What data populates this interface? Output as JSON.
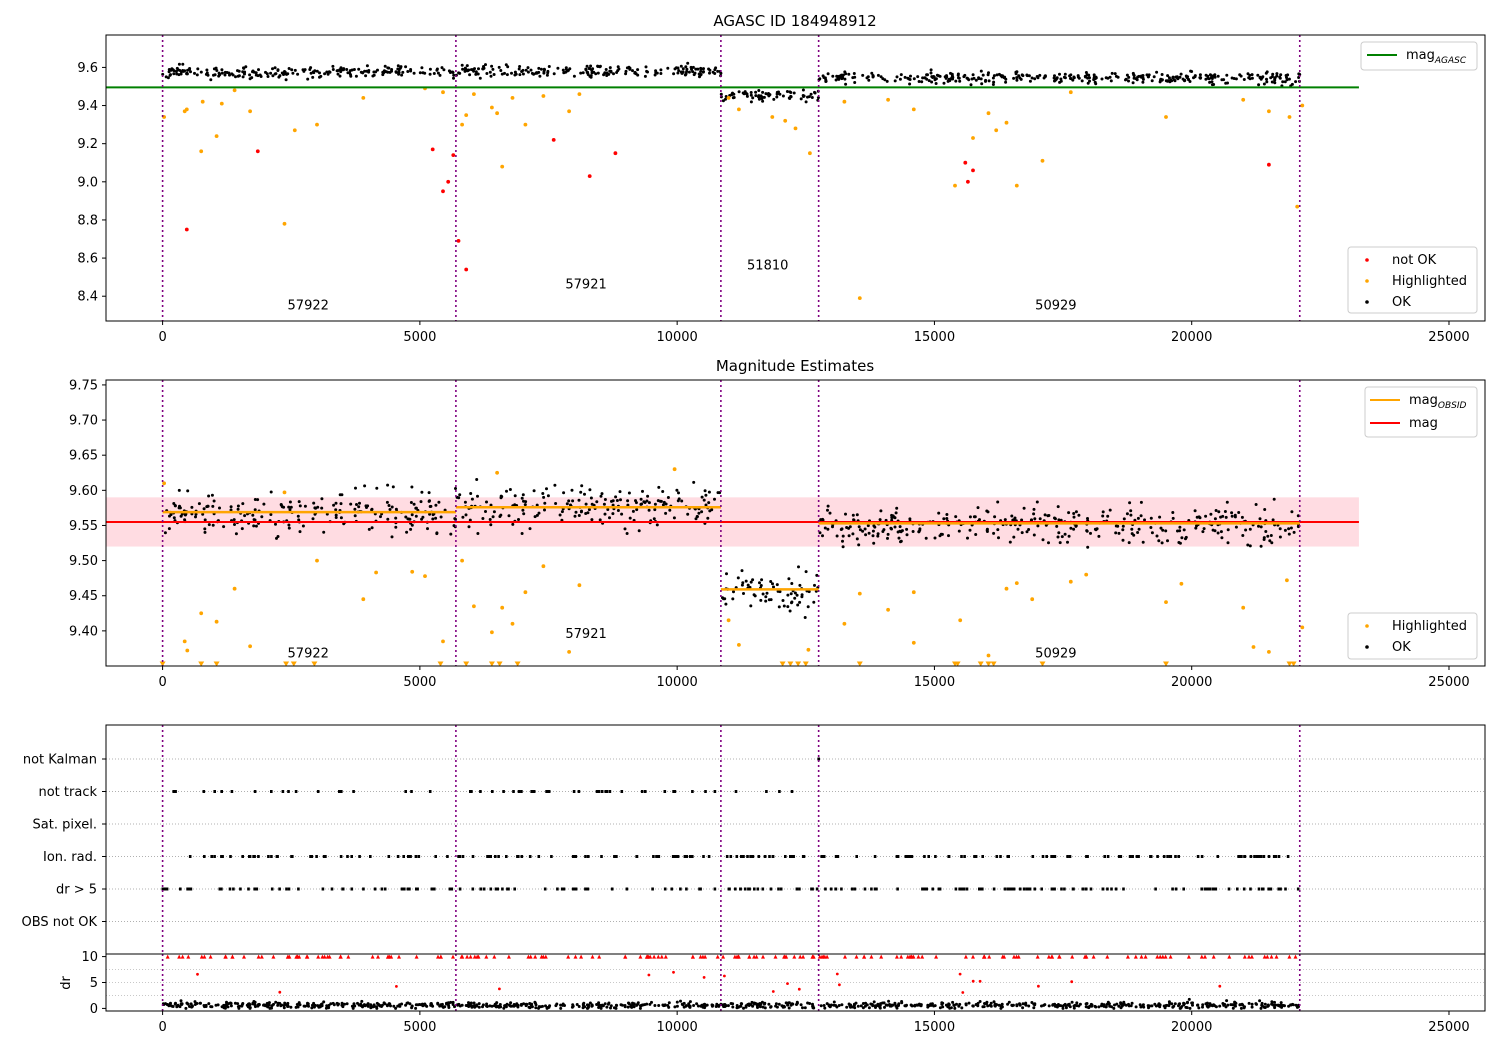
{
  "chart_data": [
    {
      "type": "scatter",
      "title": "AGASC ID 184948912",
      "xlim": [
        -1100,
        25700
      ],
      "ylim": [
        8.27,
        9.77
      ],
      "x_ticks": [
        0,
        5000,
        10000,
        15000,
        20000,
        25000
      ],
      "x_tick_labels": [
        "0",
        "5000",
        "10000",
        "15000",
        "20000",
        "25000"
      ],
      "y_ticks": [
        8.4,
        8.6,
        8.8,
        9.0,
        9.2,
        9.4,
        9.6
      ],
      "y_tick_labels": [
        "8.4",
        "8.6",
        "8.8",
        "9.0",
        "9.2",
        "9.4",
        "9.6"
      ],
      "obsid_boundaries": [
        0,
        5700,
        10850,
        12750,
        22100
      ],
      "obsid_labels": [
        {
          "text": "57922",
          "x": 2830,
          "y": 8.33
        },
        {
          "text": "57921",
          "x": 8230,
          "y": 8.44
        },
        {
          "text": "51810",
          "x": 11760,
          "y": 8.54
        },
        {
          "text": "50929",
          "x": 17360,
          "y": 8.33
        }
      ],
      "series": [
        {
          "name": "mag_AGASC",
          "type": "hline",
          "y": 9.495,
          "x_range": [
            -1100,
            23250
          ],
          "color": "#008000"
        },
        {
          "name": "OK",
          "color": "#000000",
          "segments": [
            {
              "x": [
                0,
                5700
              ],
              "y": 9.575,
              "spread": 0.035
            },
            {
              "x": [
                5700,
                10850
              ],
              "y": 9.58,
              "spread": 0.035
            },
            {
              "x": [
                10850,
                12750
              ],
              "y": 9.455,
              "spread": 0.035
            },
            {
              "x": [
                12750,
                22100
              ],
              "y": 9.545,
              "spread": 0.035
            }
          ]
        },
        {
          "name": "Highlighted",
          "color": "#ffa500",
          "points": [
            [
              30,
              9.34
            ],
            [
              430,
              9.37
            ],
            [
              470,
              9.38
            ],
            [
              750,
              9.16
            ],
            [
              780,
              9.42
            ],
            [
              1050,
              9.24
            ],
            [
              1150,
              9.41
            ],
            [
              1400,
              9.48
            ],
            [
              1700,
              9.37
            ],
            [
              2370,
              8.78
            ],
            [
              2570,
              9.27
            ],
            [
              3000,
              9.3
            ],
            [
              3900,
              9.44
            ],
            [
              5100,
              9.49
            ],
            [
              5450,
              9.47
            ],
            [
              5820,
              9.3
            ],
            [
              5900,
              9.35
            ],
            [
              6050,
              9.46
            ],
            [
              6400,
              9.39
            ],
            [
              6500,
              9.36
            ],
            [
              6600,
              9.08
            ],
            [
              6800,
              9.44
            ],
            [
              7050,
              9.3
            ],
            [
              7400,
              9.45
            ],
            [
              7900,
              9.37
            ],
            [
              8100,
              9.46
            ],
            [
              11000,
              9.44
            ],
            [
              11200,
              9.38
            ],
            [
              11850,
              9.34
            ],
            [
              12100,
              9.32
            ],
            [
              12300,
              9.28
            ],
            [
              12580,
              9.15
            ],
            [
              13250,
              9.42
            ],
            [
              13550,
              8.39
            ],
            [
              14100,
              9.43
            ],
            [
              14600,
              9.38
            ],
            [
              15400,
              8.98
            ],
            [
              15750,
              9.23
            ],
            [
              16050,
              9.36
            ],
            [
              16200,
              9.27
            ],
            [
              16400,
              9.31
            ],
            [
              16600,
              8.98
            ],
            [
              17100,
              9.11
            ],
            [
              17650,
              9.47
            ],
            [
              19500,
              9.34
            ],
            [
              21000,
              9.43
            ],
            [
              21500,
              9.37
            ],
            [
              21900,
              9.34
            ],
            [
              22050,
              8.87
            ],
            [
              22150,
              9.4
            ]
          ]
        },
        {
          "name": "not OK",
          "color": "#ff0000",
          "points": [
            [
              470,
              8.75
            ],
            [
              1850,
              9.16
            ],
            [
              5250,
              9.17
            ],
            [
              5450,
              8.95
            ],
            [
              5550,
              9.0
            ],
            [
              5650,
              9.14
            ],
            [
              5750,
              8.69
            ],
            [
              5900,
              8.54
            ],
            [
              7600,
              9.22
            ],
            [
              8300,
              9.03
            ],
            [
              8800,
              9.15
            ],
            [
              15600,
              9.1
            ],
            [
              15650,
              9.0
            ],
            [
              15750,
              9.06
            ],
            [
              21500,
              9.09
            ]
          ]
        }
      ],
      "legend_position": [
        "upper right",
        "lower right"
      ],
      "legend": [
        {
          "series": "mag_AGASC",
          "label_main": "mag",
          "label_sub": "AGASC"
        },
        {
          "series": "not OK",
          "label": "not OK"
        },
        {
          "series": "Highlighted",
          "label": "Highlighted"
        },
        {
          "series": "OK",
          "label": "OK"
        }
      ]
    },
    {
      "type": "scatter",
      "title": "Magnitude Estimates",
      "xlim": [
        -1100,
        25700
      ],
      "ylim": [
        9.35,
        9.757
      ],
      "x_ticks": [
        0,
        5000,
        10000,
        15000,
        20000,
        25000
      ],
      "x_tick_labels": [
        "0",
        "5000",
        "10000",
        "15000",
        "20000",
        "25000"
      ],
      "y_ticks": [
        9.4,
        9.45,
        9.5,
        9.55,
        9.6,
        9.65,
        9.7,
        9.75
      ],
      "y_tick_labels": [
        "9.40",
        "9.45",
        "9.50",
        "9.55",
        "9.60",
        "9.65",
        "9.70",
        "9.75"
      ],
      "obsid_boundaries": [
        0,
        5700,
        10850,
        12750,
        22100
      ],
      "obsid_labels": [
        {
          "text": "57922",
          "x": 2830,
          "y": 9.362
        },
        {
          "text": "57921",
          "x": 8230,
          "y": 9.39
        },
        {
          "text": "50929",
          "x": 17360,
          "y": 9.362
        }
      ],
      "band": {
        "x_range": [
          -1100,
          23250
        ],
        "y_range": [
          9.52,
          9.59
        ],
        "color": "#ffc0cb"
      },
      "series": [
        {
          "name": "mag",
          "type": "hline",
          "y": 9.555,
          "x_range": [
            -1100,
            23250
          ],
          "color": "#ff0000"
        },
        {
          "name": "mag_OBSID",
          "type": "steps",
          "color": "#ffa500",
          "segments": [
            {
              "x": [
                0,
                5700
              ],
              "y": 9.569
            },
            {
              "x": [
                5700,
                10850
              ],
              "y": 9.576
            },
            {
              "x": [
                10850,
                12750
              ],
              "y": 9.459
            },
            {
              "x": [
                12750,
                22100
              ],
              "y": 9.553
            }
          ]
        },
        {
          "name": "OK",
          "color": "#000000",
          "segments": [
            {
              "x": [
                0,
                5700
              ],
              "y": 9.57,
              "spread": 0.032
            },
            {
              "x": [
                5700,
                10850
              ],
              "y": 9.577,
              "spread": 0.032
            },
            {
              "x": [
                10850,
                12750
              ],
              "y": 9.455,
              "spread": 0.03
            },
            {
              "x": [
                12750,
                22100
              ],
              "y": 9.55,
              "spread": 0.032
            }
          ]
        },
        {
          "name": "Highlighted",
          "color": "#ffa500",
          "points": [
            [
              30,
              9.61
            ],
            [
              430,
              9.385
            ],
            [
              480,
              9.372
            ],
            [
              750,
              9.425
            ],
            [
              1050,
              9.413
            ],
            [
              1400,
              9.46
            ],
            [
              1700,
              9.378
            ],
            [
              2370,
              9.597
            ],
            [
              3000,
              9.5
            ],
            [
              3900,
              9.445
            ],
            [
              4150,
              9.483
            ],
            [
              4850,
              9.484
            ],
            [
              5100,
              9.478
            ],
            [
              5450,
              9.385
            ],
            [
              5820,
              9.5
            ],
            [
              6050,
              9.435
            ],
            [
              6400,
              9.398
            ],
            [
              6500,
              9.625
            ],
            [
              6600,
              9.433
            ],
            [
              6800,
              9.41
            ],
            [
              7050,
              9.455
            ],
            [
              7400,
              9.492
            ],
            [
              7900,
              9.37
            ],
            [
              8100,
              9.465
            ],
            [
              9950,
              9.63
            ],
            [
              11000,
              9.415
            ],
            [
              11200,
              9.38
            ],
            [
              12550,
              9.373
            ],
            [
              13250,
              9.41
            ],
            [
              13550,
              9.453
            ],
            [
              14100,
              9.43
            ],
            [
              14600,
              9.455
            ],
            [
              14600,
              9.383
            ],
            [
              15500,
              9.415
            ],
            [
              16050,
              9.365
            ],
            [
              16400,
              9.46
            ],
            [
              16600,
              9.468
            ],
            [
              16900,
              9.445
            ],
            [
              17650,
              9.47
            ],
            [
              17950,
              9.48
            ],
            [
              19500,
              9.441
            ],
            [
              19800,
              9.467
            ],
            [
              21000,
              9.433
            ],
            [
              21200,
              9.377
            ],
            [
              21500,
              9.37
            ],
            [
              21850,
              9.472
            ],
            [
              22150,
              9.405
            ]
          ]
        },
        {
          "name": "Highlighted (below range)",
          "color": "#ffa500",
          "marker": "triangle-down",
          "y": 9.355,
          "x": [
            0,
            750,
            1050,
            2400,
            2550,
            2950,
            5400,
            5900,
            6400,
            6550,
            6900,
            12050,
            12200,
            12350,
            12500,
            13550,
            15400,
            15450,
            15900,
            16050,
            16150,
            17100,
            19500,
            21900,
            21980
          ]
        }
      ],
      "legend_position": "upper right / lower right",
      "legend": [
        {
          "series": "mag_OBSID",
          "label_main": "mag",
          "label_sub": "OBSID"
        },
        {
          "series": "mag",
          "label": "mag"
        },
        {
          "series": "Highlighted",
          "label": "Highlighted"
        },
        {
          "series": "OK",
          "label": "OK"
        }
      ]
    },
    {
      "type": "scatter",
      "title": "",
      "xlim": [
        -1100,
        25700
      ],
      "categories": [
        "not Kalman",
        "not track",
        "Sat. pixel.",
        "Ion. rad.",
        "dr > 5",
        "OBS not OK"
      ],
      "obsid_boundaries": [
        0,
        5700,
        10850,
        12750,
        22100
      ],
      "grid": "horizontal dotted",
      "flag_rows": [
        {
          "category": "not Kalman",
          "count": 1
        },
        {
          "category": "not track",
          "count": 55
        },
        {
          "category": "Sat. pixel.",
          "count": 0
        },
        {
          "category": "Ion. rad.",
          "count": 180
        },
        {
          "category": "dr > 5",
          "count": 180
        },
        {
          "category": "OBS not OK",
          "count": 0
        }
      ]
    },
    {
      "type": "scatter",
      "title": "",
      "xlim": [
        -1100,
        25700
      ],
      "ylim": [
        -0.5,
        10.5
      ],
      "ylabel": "dr",
      "x_ticks": [
        0,
        5000,
        10000,
        15000,
        20000,
        25000
      ],
      "x_tick_labels": [
        "0",
        "5000",
        "10000",
        "15000",
        "20000",
        "25000"
      ],
      "y_ticks": [
        0,
        5,
        10
      ],
      "y_tick_labels": [
        "0",
        "5",
        "10"
      ],
      "obsid_boundaries": [
        0,
        5700,
        10850,
        12750,
        22100
      ],
      "series": [
        {
          "name": "dr",
          "color": "#000000",
          "y_mean": 0.6,
          "spread": 0.6
        },
        {
          "name": "dr > 5",
          "color": "#ff0000",
          "marker": "triangle-up",
          "y": 10
        }
      ]
    }
  ]
}
